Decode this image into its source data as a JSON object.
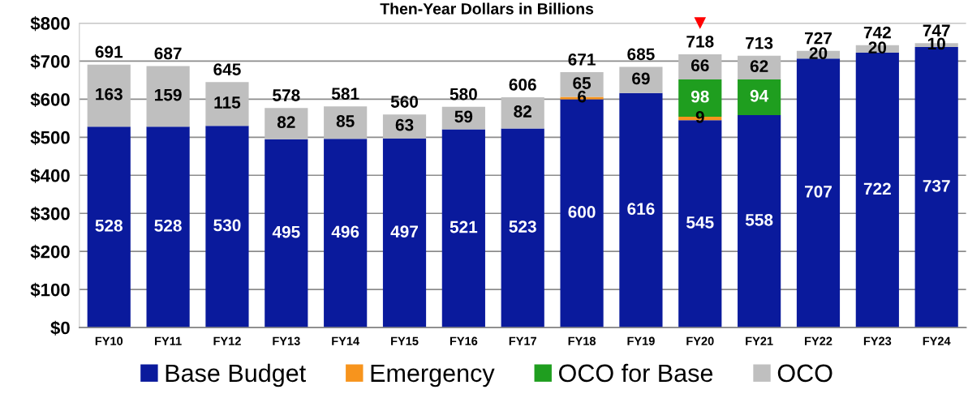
{
  "chart_data": {
    "type": "bar",
    "stacked": true,
    "subtitle": "Then-Year Dollars in Billions",
    "categories": [
      "FY10",
      "FY11",
      "FY12",
      "FY13",
      "FY14",
      "FY15",
      "FY16",
      "FY17",
      "FY18",
      "FY19",
      "FY20",
      "FY21",
      "FY22",
      "FY23",
      "FY24"
    ],
    "series": [
      {
        "name": "Base Budget",
        "color": "#0a1a9c",
        "values": [
          528,
          528,
          530,
          495,
          496,
          497,
          521,
          523,
          600,
          616,
          545,
          558,
          707,
          722,
          737
        ],
        "value_labels": [
          "528",
          "528",
          "530",
          "495",
          "496",
          "497",
          "521",
          "523",
          "600",
          "616",
          "545",
          "558",
          "707",
          "722",
          "737"
        ]
      },
      {
        "name": "Emergency",
        "color": "#f7941d",
        "values": [
          null,
          null,
          null,
          null,
          null,
          null,
          null,
          null,
          6,
          null,
          9,
          null,
          null,
          null,
          null
        ],
        "value_labels": [
          null,
          null,
          null,
          null,
          null,
          null,
          null,
          null,
          "6",
          null,
          "9",
          null,
          null,
          null,
          null
        ]
      },
      {
        "name": "OCO for Base",
        "color": "#1f9e1f",
        "values": [
          null,
          null,
          null,
          null,
          null,
          null,
          null,
          null,
          null,
          null,
          98,
          94,
          null,
          null,
          null
        ],
        "value_labels": [
          null,
          null,
          null,
          null,
          null,
          null,
          null,
          null,
          null,
          null,
          "98",
          "94",
          null,
          null,
          null
        ]
      },
      {
        "name": "OCO",
        "color": "#bfbfbf",
        "values": [
          163,
          159,
          115,
          82,
          85,
          63,
          59,
          82,
          65,
          69,
          66,
          62,
          20,
          20,
          10
        ],
        "value_labels": [
          "163",
          "159",
          "115",
          "82",
          "85",
          "63",
          "59",
          "82",
          "65",
          "69",
          "66",
          "62",
          "20",
          "20",
          "10"
        ]
      },
      {
        "type": "scatter",
        "color": "#ff0000",
        "values": [
          null,
          null,
          null,
          null,
          null,
          null,
          null,
          null,
          null,
          null,
          800,
          null,
          null,
          null,
          null
        ]
      }
    ],
    "marker": "triangle",
    "totals": [
      "691",
      "687",
      "645",
      "578",
      "581",
      "560",
      "580",
      "606",
      "671",
      "685",
      "718",
      "713",
      "727",
      "742",
      "747"
    ],
    "ylim": [
      0,
      800
    ],
    "yticks": [
      {
        "value": 0,
        "label": "$0"
      },
      {
        "value": 100,
        "label": "$100"
      },
      {
        "value": 200,
        "label": "$200"
      },
      {
        "value": 300,
        "label": "$300"
      },
      {
        "value": 400,
        "label": "$400"
      },
      {
        "value": 500,
        "label": "$500"
      },
      {
        "value": 600,
        "label": "$600"
      },
      {
        "value": 700,
        "label": "$700"
      },
      {
        "value": 800,
        "label": "$800"
      }
    ],
    "grid": "y",
    "legend": "bottom"
  }
}
